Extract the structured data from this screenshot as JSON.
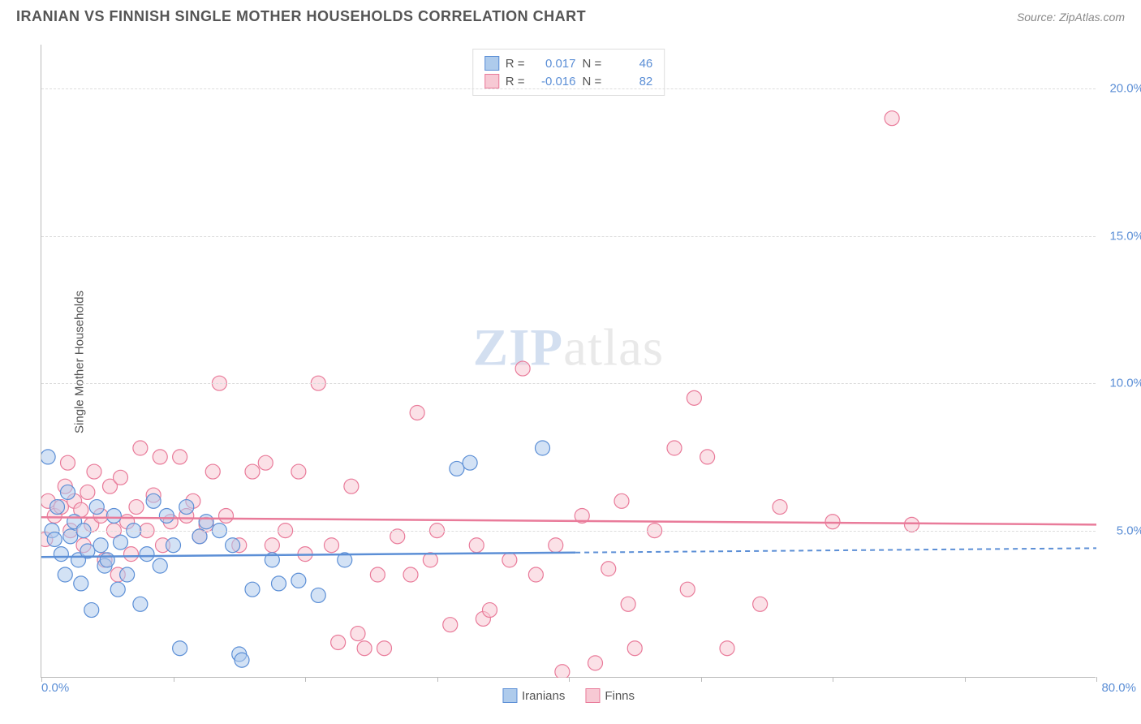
{
  "header": {
    "title": "IRANIAN VS FINNISH SINGLE MOTHER HOUSEHOLDS CORRELATION CHART",
    "source": "Source: ZipAtlas.com"
  },
  "chart": {
    "type": "scatter",
    "y_axis_label": "Single Mother Households",
    "background_color": "#ffffff",
    "grid_color": "#dddddd",
    "axis_color": "#bbbbbb",
    "watermark_zip": "ZIP",
    "watermark_atlas": "atlas",
    "x_range": [
      0,
      80
    ],
    "y_range": [
      0,
      21.5
    ],
    "y_ticks": [
      {
        "v": 5.0,
        "label": "5.0%"
      },
      {
        "v": 10.0,
        "label": "10.0%"
      },
      {
        "v": 15.0,
        "label": "15.0%"
      },
      {
        "v": 20.0,
        "label": "20.0%"
      }
    ],
    "x_ticks": [
      0,
      10,
      20,
      30,
      40,
      50,
      60,
      70,
      80
    ],
    "x_label_min": "0.0%",
    "x_label_max": "80.0%",
    "series_a": {
      "name": "Iranians",
      "legend_label": "Iranians",
      "color_fill": "#aecbec",
      "color_stroke": "#5c8fd6",
      "R_label": "R =",
      "R_value": "0.017",
      "N_label": "N =",
      "N_value": "46",
      "trend": {
        "y_start": 4.1,
        "y_end": 4.4,
        "x_solid_end": 40.5
      },
      "points": [
        [
          0.5,
          7.5
        ],
        [
          0.8,
          5.0
        ],
        [
          1.0,
          4.7
        ],
        [
          1.2,
          5.8
        ],
        [
          1.5,
          4.2
        ],
        [
          1.8,
          3.5
        ],
        [
          2.0,
          6.3
        ],
        [
          2.2,
          4.8
        ],
        [
          2.5,
          5.3
        ],
        [
          2.8,
          4.0
        ],
        [
          3.0,
          3.2
        ],
        [
          3.2,
          5.0
        ],
        [
          3.5,
          4.3
        ],
        [
          3.8,
          2.3
        ],
        [
          4.2,
          5.8
        ],
        [
          4.5,
          4.5
        ],
        [
          4.8,
          3.8
        ],
        [
          5.0,
          4.0
        ],
        [
          5.5,
          5.5
        ],
        [
          5.8,
          3.0
        ],
        [
          6.0,
          4.6
        ],
        [
          6.5,
          3.5
        ],
        [
          7.0,
          5.0
        ],
        [
          7.5,
          2.5
        ],
        [
          8.0,
          4.2
        ],
        [
          8.5,
          6.0
        ],
        [
          9.0,
          3.8
        ],
        [
          9.5,
          5.5
        ],
        [
          10.0,
          4.5
        ],
        [
          10.5,
          1.0
        ],
        [
          11.0,
          5.8
        ],
        [
          12.0,
          4.8
        ],
        [
          12.5,
          5.3
        ],
        [
          13.5,
          5.0
        ],
        [
          14.5,
          4.5
        ],
        [
          15.0,
          0.8
        ],
        [
          15.2,
          0.6
        ],
        [
          16.0,
          3.0
        ],
        [
          17.5,
          4.0
        ],
        [
          18.0,
          3.2
        ],
        [
          19.5,
          3.3
        ],
        [
          21.0,
          2.8
        ],
        [
          23.0,
          4.0
        ],
        [
          31.5,
          7.1
        ],
        [
          32.5,
          7.3
        ],
        [
          38.0,
          7.8
        ]
      ]
    },
    "series_b": {
      "name": "Finns",
      "legend_label": "Finns",
      "color_fill": "#f7c9d4",
      "color_stroke": "#e97b9a",
      "R_label": "R =",
      "R_value": "-0.016",
      "N_label": "N =",
      "N_value": "82",
      "trend": {
        "y_start": 5.45,
        "y_end": 5.2
      },
      "points": [
        [
          0.3,
          4.7
        ],
        [
          0.5,
          6.0
        ],
        [
          1.0,
          5.5
        ],
        [
          1.5,
          5.8
        ],
        [
          1.8,
          6.5
        ],
        [
          2.0,
          7.3
        ],
        [
          2.2,
          5.0
        ],
        [
          2.5,
          6.0
        ],
        [
          3.0,
          5.7
        ],
        [
          3.2,
          4.5
        ],
        [
          3.5,
          6.3
        ],
        [
          3.8,
          5.2
        ],
        [
          4.0,
          7.0
        ],
        [
          4.5,
          5.5
        ],
        [
          4.8,
          4.0
        ],
        [
          5.2,
          6.5
        ],
        [
          5.5,
          5.0
        ],
        [
          5.8,
          3.5
        ],
        [
          6.0,
          6.8
        ],
        [
          6.5,
          5.3
        ],
        [
          6.8,
          4.2
        ],
        [
          7.2,
          5.8
        ],
        [
          7.5,
          7.8
        ],
        [
          8.0,
          5.0
        ],
        [
          8.5,
          6.2
        ],
        [
          9.0,
          7.5
        ],
        [
          9.2,
          4.5
        ],
        [
          9.8,
          5.3
        ],
        [
          10.5,
          7.5
        ],
        [
          11.0,
          5.5
        ],
        [
          11.5,
          6.0
        ],
        [
          12.0,
          4.8
        ],
        [
          12.5,
          5.2
        ],
        [
          13.0,
          7.0
        ],
        [
          13.5,
          10.0
        ],
        [
          14.0,
          5.5
        ],
        [
          15.0,
          4.5
        ],
        [
          16.0,
          7.0
        ],
        [
          17.0,
          7.3
        ],
        [
          17.5,
          4.5
        ],
        [
          18.5,
          5.0
        ],
        [
          19.5,
          7.0
        ],
        [
          20.0,
          4.2
        ],
        [
          21.0,
          10.0
        ],
        [
          22.0,
          4.5
        ],
        [
          22.5,
          1.2
        ],
        [
          23.5,
          6.5
        ],
        [
          24.0,
          1.5
        ],
        [
          24.5,
          1.0
        ],
        [
          25.5,
          3.5
        ],
        [
          26.0,
          1.0
        ],
        [
          27.0,
          4.8
        ],
        [
          28.0,
          3.5
        ],
        [
          28.5,
          9.0
        ],
        [
          29.5,
          4.0
        ],
        [
          30.0,
          5.0
        ],
        [
          31.0,
          1.8
        ],
        [
          33.0,
          4.5
        ],
        [
          33.5,
          2.0
        ],
        [
          34.0,
          2.3
        ],
        [
          35.5,
          4.0
        ],
        [
          36.5,
          10.5
        ],
        [
          37.5,
          3.5
        ],
        [
          39.0,
          4.5
        ],
        [
          39.5,
          0.2
        ],
        [
          41.0,
          5.5
        ],
        [
          42.0,
          0.5
        ],
        [
          43.0,
          3.7
        ],
        [
          44.0,
          6.0
        ],
        [
          44.5,
          2.5
        ],
        [
          45.0,
          1.0
        ],
        [
          46.5,
          5.0
        ],
        [
          48.0,
          7.8
        ],
        [
          49.0,
          3.0
        ],
        [
          49.5,
          9.5
        ],
        [
          50.5,
          7.5
        ],
        [
          52.0,
          1.0
        ],
        [
          54.5,
          2.5
        ],
        [
          56.0,
          5.8
        ],
        [
          60.0,
          5.3
        ],
        [
          64.5,
          19.0
        ],
        [
          66.0,
          5.2
        ]
      ]
    }
  }
}
